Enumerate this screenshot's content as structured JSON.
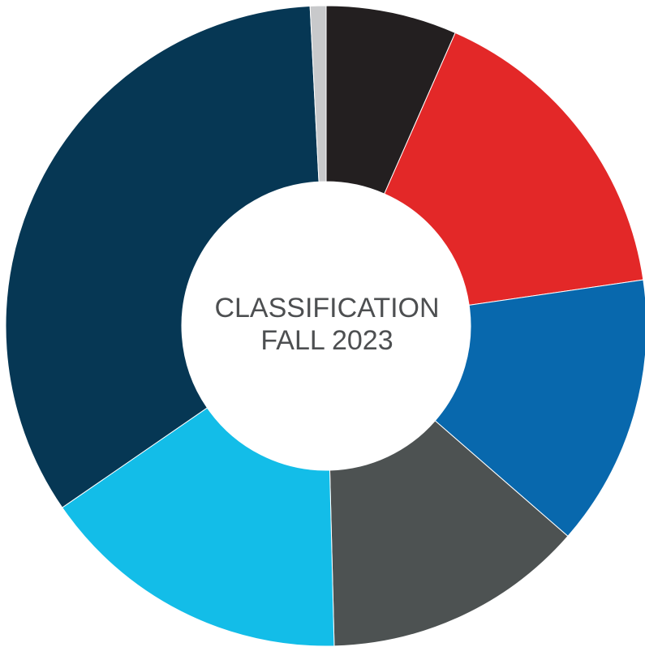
{
  "chart_data": {
    "type": "donut",
    "title": [
      "CLASSIFICATION",
      "FALL 2023"
    ],
    "categories": [
      null,
      null,
      null,
      null,
      null,
      null,
      null
    ],
    "values": [
      6.6,
      16.1,
      13.7,
      13.2,
      15.8,
      33.8,
      0.8
    ],
    "colors": [
      "#231f20",
      "#e32828",
      "#0868ad",
      "#4d5252",
      "#13bde8",
      "#063754",
      "#c8c9cb"
    ]
  }
}
